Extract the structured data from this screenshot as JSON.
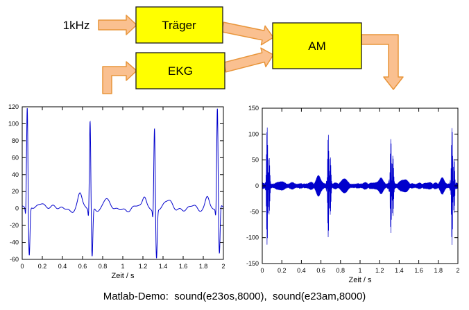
{
  "colors": {
    "background": "#ffffff",
    "box_fill": "#ffff00",
    "box_stroke": "#1a1a1a",
    "arrow_fill": "#fac090",
    "arrow_stroke": "#e8953a",
    "signal": "#0000cc",
    "text": "#000000"
  },
  "diagram": {
    "input_label": "1kHz",
    "blocks": {
      "traeger": "Träger",
      "ekg": "EKG",
      "am": "AM"
    }
  },
  "caption": "Matlab-Demo:  sound(e23os,8000),  sound(e23am,8000)",
  "chart_data": [
    {
      "type": "line",
      "name": "ekg-signal",
      "description": "EKG time signal e23os",
      "title": "",
      "xlabel": "Zeit / s",
      "ylabel": "",
      "xlim": [
        0,
        2
      ],
      "ylim": [
        -60,
        120
      ],
      "xticks": [
        0,
        0.2,
        0.4,
        0.6,
        0.8,
        1,
        1.2,
        1.4,
        1.6,
        1.8,
        2
      ],
      "xtick_labels": [
        "0",
        "0.2",
        "0.4",
        "0.6",
        "0.8",
        "1",
        "1.2",
        "1.4",
        "1.6",
        "1.8",
        "2"
      ],
      "yticks": [
        -60,
        -40,
        -20,
        0,
        20,
        40,
        60,
        80,
        100,
        120
      ],
      "ytick_labels": [
        "-60",
        "-40",
        "-20",
        "0",
        "20",
        "40",
        "60",
        "80",
        "100",
        "120"
      ],
      "grid": false,
      "legend": false,
      "color": "#0000cc",
      "ecg_model": {
        "beats": [
          {
            "t": 0.05,
            "peak": 118
          },
          {
            "t": 0.675,
            "peak": 104
          },
          {
            "t": 1.315,
            "peak": 97
          },
          {
            "t": 1.94,
            "peak": 117
          }
        ],
        "r_width": 0.009,
        "q_amp": -10,
        "q_offset": -0.016,
        "q_width": 0.006,
        "s_amp": -58,
        "s_offset": 0.02,
        "s_width": 0.01,
        "p_amp": 16,
        "p_offset": -0.1,
        "p_width": 0.028,
        "t_amp": 10,
        "t_offset": 0.15,
        "t_width": 0.04,
        "noise": [
          [
            2.5,
            3.7,
            0
          ],
          [
            1.6,
            7.1,
            1.3
          ],
          [
            1.1,
            12.7,
            2.1
          ]
        ]
      }
    },
    {
      "type": "line",
      "name": "am-signal",
      "description": "AM modulated EKG e23am, carrier 1 kHz",
      "title": "",
      "xlabel": "Zeit / s",
      "ylabel": "",
      "xlim": [
        0,
        2
      ],
      "ylim": [
        -150,
        150
      ],
      "xticks": [
        0,
        0.2,
        0.4,
        0.6,
        0.8,
        1,
        1.2,
        1.4,
        1.6,
        1.8,
        2
      ],
      "xtick_labels": [
        "0",
        "0.2",
        "0.4",
        "0.6",
        "0.8",
        "1",
        "1.2",
        "1.4",
        "1.6",
        "1.8",
        "2"
      ],
      "yticks": [
        -150,
        -100,
        -50,
        0,
        50,
        100,
        150
      ],
      "ytick_labels": [
        "-150",
        "-100",
        "-50",
        "0",
        "50",
        "100",
        "150"
      ],
      "grid": false,
      "legend": false,
      "color": "#0000cc",
      "carrier_hz": 1000,
      "envelope_min": 3,
      "envelope_scale": 0.95
    }
  ]
}
